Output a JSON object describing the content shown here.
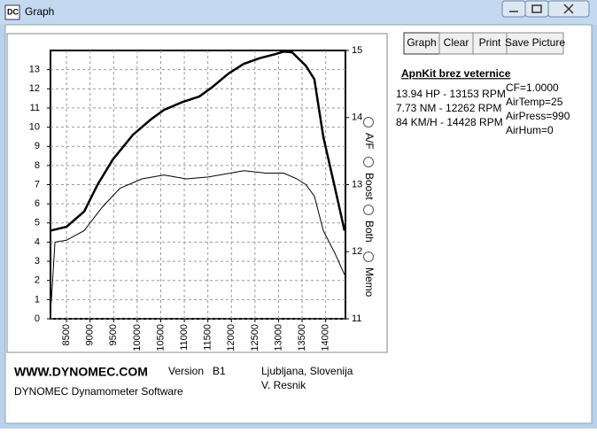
{
  "window": {
    "title": "Graph"
  },
  "buttons": [
    "Graph",
    "Clear",
    "Print",
    "Save Picture"
  ],
  "radios": [
    "A/F",
    "Boost",
    "Both",
    "Memo"
  ],
  "info": {
    "heading": "ApnKit brez veternice",
    "results": [
      "13.94 HP - 13153 RPM",
      "7.73 NM - 12262 RPM",
      "84 KM/H - 14428 RPM"
    ],
    "conditions": [
      "CF=1.0000",
      "AirTemp=25",
      "AirPress=990",
      "AirHum=0"
    ]
  },
  "footer": {
    "site": "WWW.DYNOMEC.COM",
    "version_label": "Version",
    "version": "B1",
    "location": "Ljubljana, Slovenija",
    "author": "V. Resnik",
    "product": "DYNOMEC Dynamometer Software"
  },
  "chart_data": {
    "type": "line",
    "xlim": [
      8160,
      14420
    ],
    "xticks": [
      8500,
      9000,
      9500,
      10000,
      10500,
      11000,
      11500,
      12000,
      12500,
      13000,
      13500,
      14000
    ],
    "ylim": [
      0,
      14
    ],
    "yticks": [
      0,
      1,
      2,
      3,
      4,
      5,
      6,
      7,
      8,
      9,
      10,
      11,
      12,
      13
    ],
    "y2lim": [
      11,
      15
    ],
    "y2ticks": [
      11,
      12,
      13,
      14,
      15
    ],
    "grid": true,
    "series": [
      {
        "color": "#000000",
        "x": [
          8160,
          8500,
          8875,
          9160,
          9480,
          9910,
          10290,
          10570,
          10950,
          11320,
          11600,
          11940,
          12260,
          12600,
          12920,
          13110,
          13290,
          13580,
          13760,
          13950,
          14200,
          14400
        ],
        "values": [
          4.6,
          4.8,
          5.6,
          7.0,
          8.3,
          9.6,
          10.4,
          10.9,
          11.3,
          11.6,
          12.1,
          12.8,
          13.3,
          13.6,
          13.8,
          13.94,
          13.9,
          13.2,
          12.5,
          9.5,
          6.8,
          4.6
        ]
      },
      {
        "color": "#000000",
        "x": [
          8160,
          8180,
          8255,
          8500,
          8875,
          9250,
          9630,
          10100,
          10570,
          11040,
          11510,
          11980,
          12262,
          12730,
          13110,
          13390,
          13580,
          13760,
          13950,
          14200,
          14400
        ],
        "values": [
          0.5,
          1.0,
          4.0,
          4.1,
          4.6,
          5.8,
          6.8,
          7.3,
          7.5,
          7.3,
          7.4,
          7.6,
          7.73,
          7.6,
          7.6,
          7.3,
          7.0,
          6.4,
          4.6,
          3.4,
          2.3
        ]
      }
    ]
  }
}
